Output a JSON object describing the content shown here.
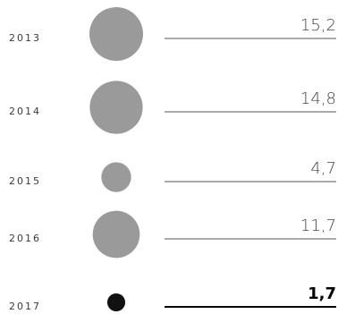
{
  "chart_data": {
    "type": "bubble",
    "categories": [
      "2013",
      "2014",
      "2015",
      "2016",
      "2017"
    ],
    "values": [
      15.2,
      14.8,
      4.7,
      11.7,
      1.7
    ],
    "value_labels": [
      "15,2",
      "14,8",
      "4,7",
      "11,7",
      "1,7"
    ],
    "highlight_index": 4,
    "colors": {
      "bubble": "#9a9a9a",
      "highlight": "#111111",
      "rule": "#555555"
    }
  }
}
